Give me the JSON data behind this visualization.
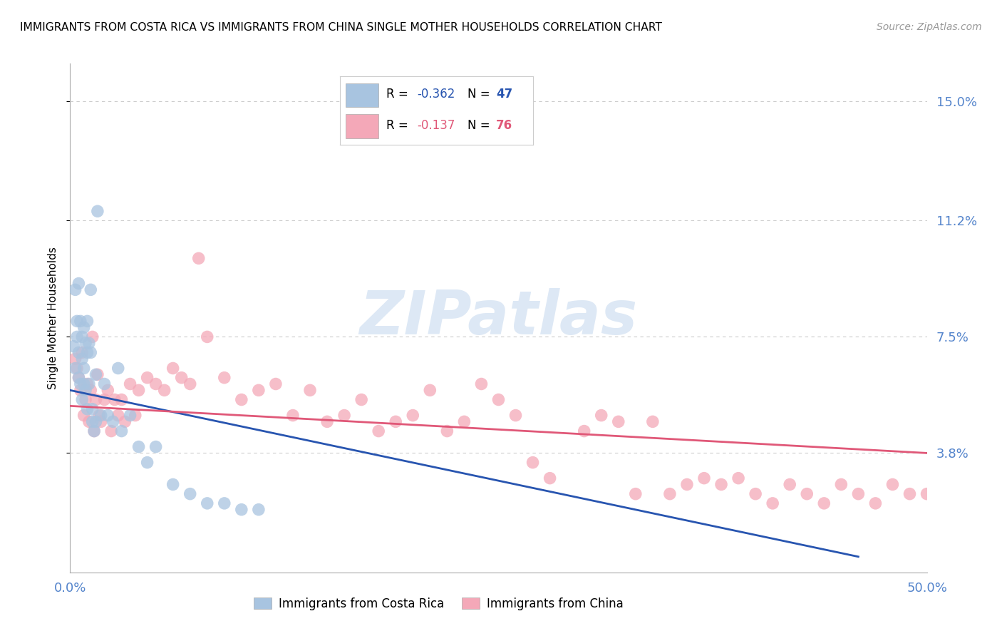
{
  "title": "IMMIGRANTS FROM COSTA RICA VS IMMIGRANTS FROM CHINA SINGLE MOTHER HOUSEHOLDS CORRELATION CHART",
  "source": "Source: ZipAtlas.com",
  "ylabel": "Single Mother Households",
  "yticks": [
    0.038,
    0.075,
    0.112,
    0.15
  ],
  "ytick_labels": [
    "3.8%",
    "7.5%",
    "11.2%",
    "15.0%"
  ],
  "xtick_labels": [
    "0.0%",
    "50.0%"
  ],
  "xlim": [
    0.0,
    0.5
  ],
  "ylim": [
    0.0,
    0.162
  ],
  "blue_dot_color": "#a8c4e0",
  "pink_dot_color": "#f4a8b8",
  "blue_line_color": "#2855b0",
  "pink_line_color": "#e05878",
  "axis_tick_color": "#5585cc",
  "grid_color": "#cccccc",
  "watermark_text": "ZIPatlas",
  "watermark_color": "#dde8f5",
  "background_color": "#ffffff",
  "legend_R1": "-0.362",
  "legend_N1": "47",
  "legend_R2": "-0.137",
  "legend_N2": "76",
  "costa_rica_x": [
    0.002,
    0.003,
    0.003,
    0.004,
    0.004,
    0.005,
    0.005,
    0.005,
    0.006,
    0.006,
    0.007,
    0.007,
    0.007,
    0.008,
    0.008,
    0.008,
    0.009,
    0.009,
    0.01,
    0.01,
    0.01,
    0.011,
    0.011,
    0.012,
    0.012,
    0.013,
    0.013,
    0.014,
    0.015,
    0.015,
    0.016,
    0.018,
    0.02,
    0.022,
    0.025,
    0.028,
    0.03,
    0.035,
    0.04,
    0.045,
    0.05,
    0.06,
    0.07,
    0.08,
    0.09,
    0.1,
    0.11
  ],
  "costa_rica_y": [
    0.072,
    0.065,
    0.09,
    0.08,
    0.075,
    0.092,
    0.07,
    0.062,
    0.06,
    0.08,
    0.075,
    0.068,
    0.055,
    0.078,
    0.065,
    0.06,
    0.073,
    0.058,
    0.08,
    0.07,
    0.052,
    0.073,
    0.06,
    0.09,
    0.07,
    0.052,
    0.048,
    0.045,
    0.063,
    0.048,
    0.115,
    0.05,
    0.06,
    0.05,
    0.048,
    0.065,
    0.045,
    0.05,
    0.04,
    0.035,
    0.04,
    0.028,
    0.025,
    0.022,
    0.022,
    0.02,
    0.02
  ],
  "china_x": [
    0.003,
    0.004,
    0.005,
    0.006,
    0.007,
    0.008,
    0.009,
    0.01,
    0.011,
    0.012,
    0.013,
    0.014,
    0.015,
    0.016,
    0.017,
    0.018,
    0.02,
    0.022,
    0.024,
    0.026,
    0.028,
    0.03,
    0.032,
    0.035,
    0.038,
    0.04,
    0.045,
    0.05,
    0.055,
    0.06,
    0.065,
    0.07,
    0.075,
    0.08,
    0.09,
    0.1,
    0.11,
    0.12,
    0.13,
    0.14,
    0.15,
    0.16,
    0.17,
    0.18,
    0.19,
    0.2,
    0.21,
    0.22,
    0.23,
    0.24,
    0.25,
    0.26,
    0.27,
    0.28,
    0.3,
    0.31,
    0.32,
    0.33,
    0.34,
    0.35,
    0.36,
    0.37,
    0.38,
    0.39,
    0.4,
    0.41,
    0.42,
    0.43,
    0.44,
    0.45,
    0.46,
    0.47,
    0.48,
    0.49,
    0.5,
    0.51
  ],
  "china_y": [
    0.068,
    0.065,
    0.062,
    0.058,
    0.07,
    0.05,
    0.055,
    0.06,
    0.048,
    0.058,
    0.075,
    0.045,
    0.055,
    0.063,
    0.05,
    0.048,
    0.055,
    0.058,
    0.045,
    0.055,
    0.05,
    0.055,
    0.048,
    0.06,
    0.05,
    0.058,
    0.062,
    0.06,
    0.058,
    0.065,
    0.062,
    0.06,
    0.1,
    0.075,
    0.062,
    0.055,
    0.058,
    0.06,
    0.05,
    0.058,
    0.048,
    0.05,
    0.055,
    0.045,
    0.048,
    0.05,
    0.058,
    0.045,
    0.048,
    0.06,
    0.055,
    0.05,
    0.035,
    0.03,
    0.045,
    0.05,
    0.048,
    0.025,
    0.048,
    0.025,
    0.028,
    0.03,
    0.028,
    0.03,
    0.025,
    0.022,
    0.028,
    0.025,
    0.022,
    0.028,
    0.025,
    0.022,
    0.028,
    0.025,
    0.025,
    0.022
  ],
  "blue_line_x0": 0.0,
  "blue_line_y0": 0.058,
  "blue_line_x1": 0.46,
  "blue_line_y1": 0.005,
  "pink_line_x0": 0.0,
  "pink_line_y0": 0.053,
  "pink_line_x1": 0.5,
  "pink_line_y1": 0.038
}
